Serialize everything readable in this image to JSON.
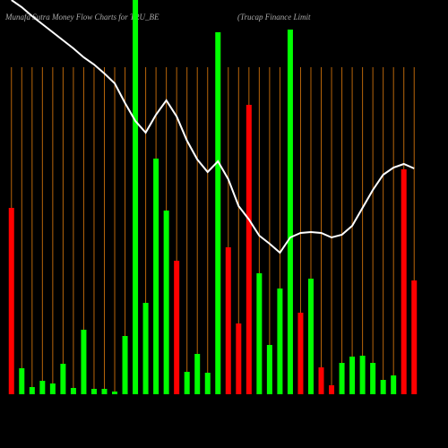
{
  "chart_data": {
    "type": "bar",
    "title": "Munafa Sutra  Money Flow  Charts for TRU_BE",
    "subtitle": "(Trucap Finance  Limit",
    "categories": [
      null,
      null,
      null,
      null,
      null,
      null,
      null,
      null,
      null,
      null,
      null,
      null,
      null,
      null,
      null,
      null,
      null,
      null,
      null,
      null,
      null,
      null,
      null,
      null,
      null,
      null,
      null,
      null,
      null,
      null,
      null,
      null,
      null,
      null,
      null,
      null,
      null,
      null,
      null,
      null
    ],
    "values": [
      208,
      29,
      8,
      15,
      12,
      34,
      7,
      72,
      6,
      6,
      3,
      65,
      440,
      102,
      263,
      205,
      149,
      25,
      45,
      24,
      404,
      164,
      79,
      323,
      135,
      55,
      118,
      407,
      91,
      129,
      30,
      10,
      35,
      42,
      43,
      35,
      16,
      21,
      251,
      127
    ],
    "colors": [
      "#ff0000",
      "#00ff00",
      "#00ff00",
      "#00ff00",
      "#00ff00",
      "#00ff00",
      "#00ff00",
      "#00ff00",
      "#00ff00",
      "#00ff00",
      "#00ff00",
      "#00ff00",
      "#00ff00",
      "#00ff00",
      "#00ff00",
      "#00ff00",
      "#ff0000",
      "#00ff00",
      "#00ff00",
      "#00ff00",
      "#00ff00",
      "#ff0000",
      "#ff0000",
      "#ff0000",
      "#00ff00",
      "#00ff00",
      "#00ff00",
      "#00ff00",
      "#ff0000",
      "#00ff00",
      "#ff0000",
      "#ff0000",
      "#00ff00",
      "#00ff00",
      "#00ff00",
      "#00ff00",
      "#00ff00",
      "#00ff00",
      "#ff0000",
      "#ff0000"
    ],
    "line": {
      "color": "#ffffff",
      "values": [
        440,
        432,
        422,
        413,
        404,
        395,
        386,
        376,
        368,
        358,
        347,
        325,
        305,
        292,
        312,
        328,
        310,
        283,
        262,
        248,
        260,
        240,
        210,
        195,
        177,
        168,
        158,
        175,
        180,
        181,
        180,
        175,
        178,
        188,
        208,
        228,
        245,
        253,
        257,
        252
      ]
    },
    "grid_color": "#b8650a",
    "ylim": [
      0,
      440
    ]
  }
}
